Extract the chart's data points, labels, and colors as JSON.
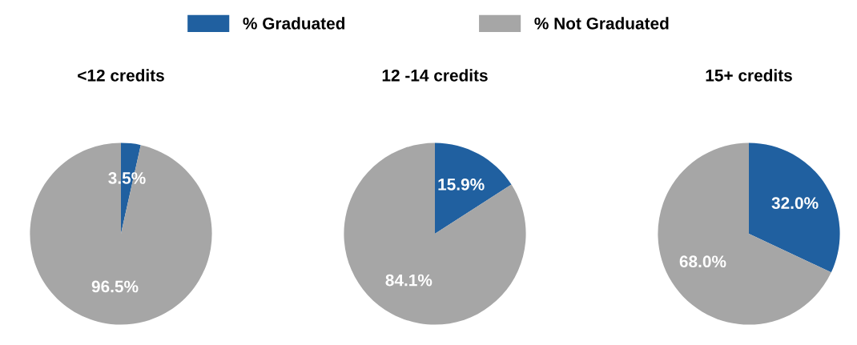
{
  "chart_data": [
    {
      "type": "pie",
      "title": "<12 credits",
      "categories": [
        "% Graduated",
        "% Not Graduated"
      ],
      "values": [
        3.5,
        96.5
      ],
      "value_labels": [
        "3.5%",
        "96.5%"
      ],
      "colors": [
        "#2060a0",
        "#a6a6a6"
      ],
      "legend": "top"
    },
    {
      "type": "pie",
      "title": "12 -14 credits",
      "values": [
        15.9,
        84.1
      ],
      "value_labels": [
        "15.9%",
        "84.1%"
      ],
      "colors": [
        "#2060a0",
        "#a6a6a6"
      ]
    },
    {
      "type": "pie",
      "title": "15+ credits",
      "values": [
        32.0,
        68.0
      ],
      "value_labels": [
        "32.0%",
        "68.0%"
      ],
      "colors": [
        "#2060a0",
        "#a6a6a6"
      ]
    }
  ]
}
